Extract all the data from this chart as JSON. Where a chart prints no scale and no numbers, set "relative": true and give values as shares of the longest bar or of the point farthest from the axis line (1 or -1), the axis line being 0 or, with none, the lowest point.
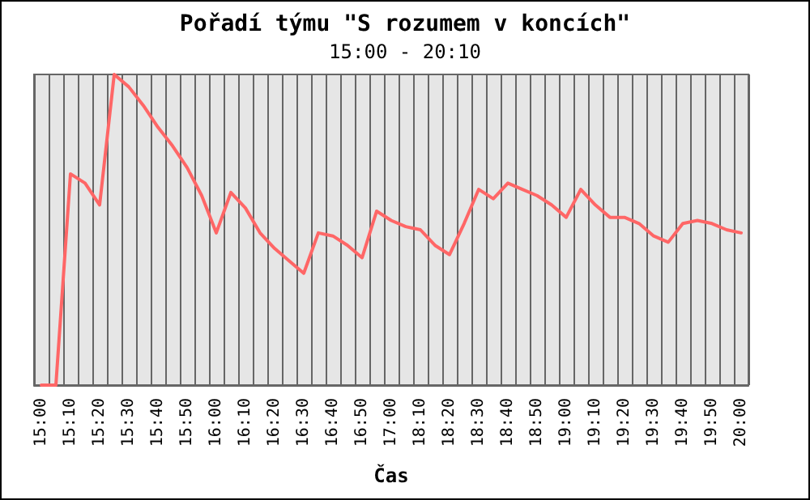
{
  "chart_data": {
    "type": "line",
    "title": "Pořadí týmu \"S rozumem v koncích\"",
    "subtitle": "15:00 - 20:10",
    "xlabel": "Čas",
    "relative": true,
    "categories": [
      "15:00",
      null,
      "15:10",
      null,
      "15:20",
      null,
      "15:30",
      null,
      "15:40",
      null,
      "15:50",
      null,
      "16:00",
      null,
      "16:10",
      null,
      "16:20",
      null,
      "16:30",
      null,
      "16:40",
      null,
      "16:50",
      null,
      "17:00",
      null,
      "18:10",
      null,
      "18:20",
      null,
      "18:30",
      null,
      "18:40",
      null,
      "18:50",
      null,
      "19:00",
      null,
      "19:10",
      null,
      "19:20",
      null,
      "19:30",
      null,
      "19:40",
      null,
      "19:50",
      null,
      "20:00"
    ],
    "series": [
      {
        "color": "#ff6666",
        "values": [
          0,
          0,
          0.68,
          0.65,
          0.58,
          1,
          0.96,
          0.9,
          0.83,
          0.77,
          0.7,
          0.61,
          0.49,
          0.62,
          0.57,
          0.49,
          0.44,
          0.4,
          0.36,
          0.49,
          0.48,
          0.45,
          0.41,
          0.56,
          0.53,
          0.51,
          0.5,
          0.45,
          0.42,
          0.52,
          0.63,
          0.6,
          0.65,
          0.63,
          0.61,
          0.58,
          0.54,
          0.63,
          0.58,
          0.54,
          0.54,
          0.52,
          0.48,
          0.46,
          0.52,
          0.53,
          0.52,
          0.5,
          0.49
        ]
      }
    ],
    "grid": "x",
    "marker": "none",
    "line_style": "solid"
  }
}
